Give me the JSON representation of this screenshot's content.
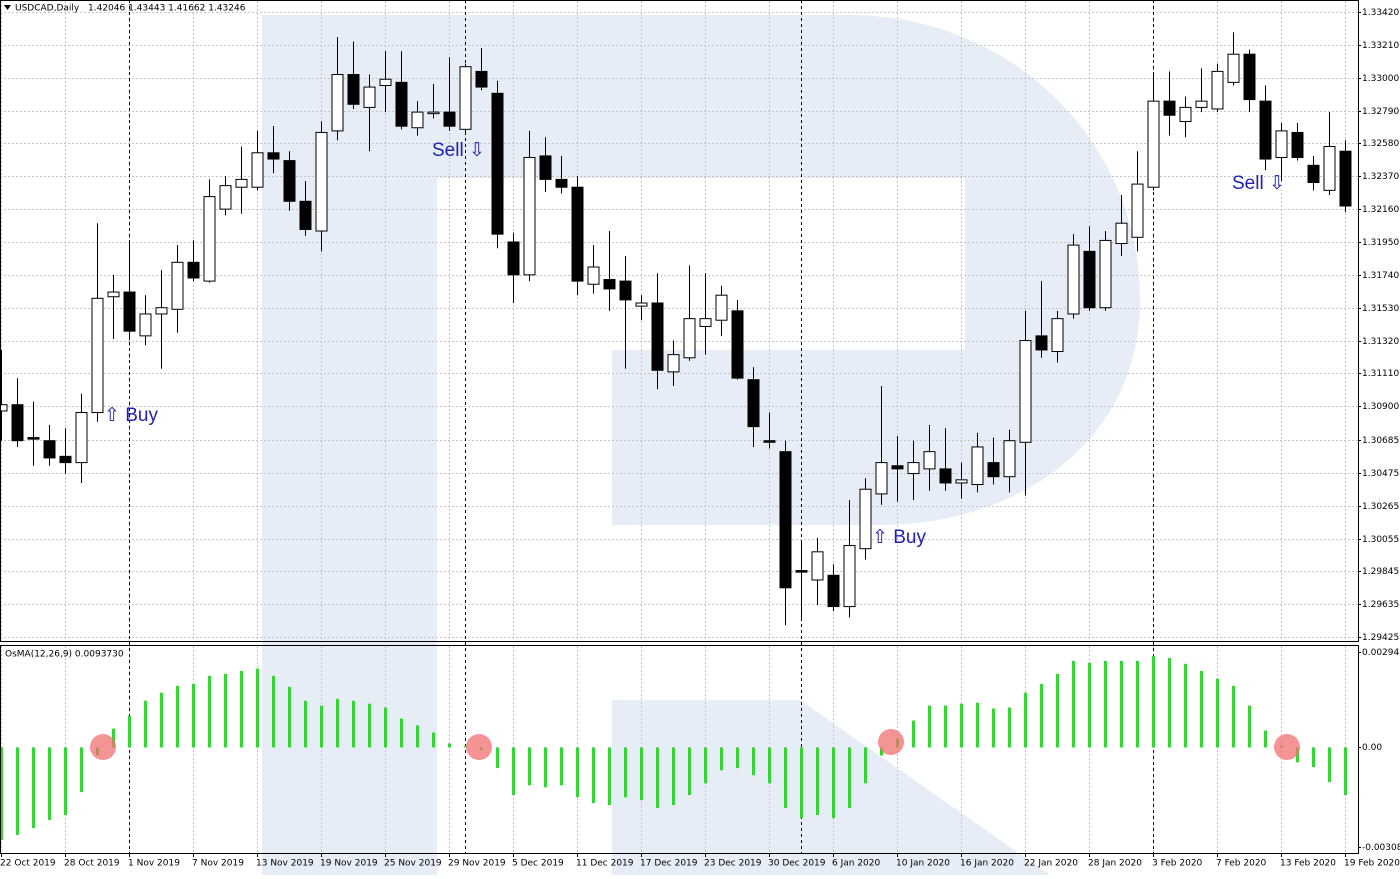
{
  "chart_data": [
    {
      "type": "candlestick",
      "title": "USDCAD,Daily",
      "subtitle": "1.42046 1.43443 1.41662 1.43246",
      "categories": [
        "22 Oct 2019",
        null,
        null,
        null,
        "28 Oct 2019",
        null,
        null,
        null,
        "1 Nov 2019",
        null,
        null,
        null,
        "7 Nov 2019",
        null,
        null,
        null,
        "13 Nov 2019",
        null,
        null,
        null,
        "19 Nov 2019",
        null,
        null,
        null,
        "25 Nov 2019",
        null,
        null,
        null,
        "29 Nov 2019",
        null,
        null,
        null,
        "5 Dec 2019",
        null,
        null,
        null,
        "11 Dec 2019",
        null,
        null,
        null,
        "17 Dec 2019",
        null,
        null,
        null,
        "23 Dec 2019",
        null,
        null,
        null,
        "30 Dec 2019",
        null,
        null,
        null,
        "6 Jan 2020",
        null,
        null,
        null,
        "10 Jan 2020",
        null,
        null,
        null,
        "16 Jan 2020",
        null,
        null,
        null,
        "22 Jan 2020",
        null,
        null,
        null,
        "28 Jan 2020",
        null,
        null,
        null,
        "3 Feb 2020",
        null,
        null,
        null,
        "7 Feb 2020",
        null,
        null,
        null,
        "13 Feb 2020",
        null,
        null,
        null,
        "19 Feb 2020"
      ],
      "open": [
        1.3087,
        1.3091,
        1.307,
        1.3068,
        1.3058,
        1.3054,
        1.3086,
        1.316,
        1.3163,
        1.3135,
        1.3149,
        1.3152,
        1.3182,
        1.317,
        1.3216,
        1.323,
        1.323,
        1.3252,
        1.3247,
        1.3221,
        1.3202,
        1.3266,
        1.3302,
        1.3281,
        1.3295,
        1.3297,
        1.3268,
        1.3277,
        1.3278,
        1.3267,
        1.3304,
        1.329,
        1.3195,
        1.3174,
        1.325,
        1.3235,
        1.323,
        1.3168,
        1.3171,
        1.317,
        1.3154,
        1.3156,
        1.3112,
        1.3121,
        1.3141,
        1.3145,
        1.3151,
        1.3107,
        1.3068,
        1.3061,
        1.2985,
        1.2979,
        1.2982,
        1.2962,
        1.2999,
        1.3034,
        1.3052,
        1.3047,
        1.305,
        1.305,
        1.3041,
        1.304,
        1.3054,
        1.3045,
        1.3067,
        1.3135,
        1.3125,
        1.3149,
        1.3189,
        1.3153,
        1.3194,
        1.3198,
        1.323,
        1.3285,
        1.3272,
        1.3281,
        1.328,
        1.3297,
        1.3315,
        1.3285,
        1.3249,
        1.3265,
        1.3244,
        1.3228,
        1.3253
      ],
      "high": [
        1.3126,
        1.3108,
        1.3093,
        1.3078,
        1.3076,
        1.3098,
        1.3207,
        1.3174,
        1.3196,
        1.3161,
        1.3177,
        1.3193,
        1.3196,
        1.3235,
        1.3237,
        1.3256,
        1.3266,
        1.3269,
        1.3253,
        1.3234,
        1.3272,
        1.3326,
        1.3323,
        1.3302,
        1.3317,
        1.3317,
        1.3285,
        1.3296,
        1.3313,
        1.3309,
        1.3319,
        1.3298,
        1.3201,
        1.3266,
        1.3262,
        1.325,
        1.3237,
        1.3193,
        1.3202,
        1.3186,
        1.3161,
        1.3175,
        1.3132,
        1.318,
        1.3175,
        1.3167,
        1.3158,
        1.3115,
        1.3086,
        1.3068,
        1.3004,
        1.3006,
        1.2989,
        1.303,
        1.3044,
        1.3103,
        1.3071,
        1.3068,
        1.3078,
        1.3076,
        1.3054,
        1.3073,
        1.307,
        1.3075,
        1.3151,
        1.317,
        1.3151,
        1.32,
        1.3205,
        1.3202,
        1.3225,
        1.3253,
        1.3303,
        1.3304,
        1.3288,
        1.3306,
        1.3309,
        1.3329,
        1.3318,
        1.3295,
        1.3271,
        1.3271,
        1.325,
        1.3278,
        1.326
      ],
      "low": [
        1.3068,
        1.3064,
        1.3052,
        1.3052,
        1.3047,
        1.3041,
        1.308,
        1.3133,
        1.3132,
        1.3129,
        1.3114,
        1.3137,
        1.317,
        1.3169,
        1.3212,
        1.3213,
        1.3228,
        1.3239,
        1.3215,
        1.3199,
        1.3189,
        1.326,
        1.328,
        1.3253,
        1.3278,
        1.3267,
        1.3263,
        1.3274,
        1.3266,
        1.3265,
        1.3292,
        1.3191,
        1.3156,
        1.317,
        1.3227,
        1.3226,
        1.3161,
        1.3162,
        1.3151,
        1.3114,
        1.3145,
        1.3101,
        1.3103,
        1.3119,
        1.3123,
        1.3135,
        1.3107,
        1.3064,
        1.3063,
        1.295,
        1.2953,
        1.2963,
        1.2959,
        1.2955,
        1.2992,
        1.3027,
        1.3029,
        1.303,
        1.3036,
        1.3036,
        1.3031,
        1.3035,
        1.304,
        1.3035,
        1.3033,
        1.3121,
        1.3118,
        1.3146,
        1.3151,
        1.3151,
        1.3186,
        1.3189,
        1.3228,
        1.3263,
        1.3262,
        1.3278,
        1.3278,
        1.3295,
        1.3278,
        1.3241,
        1.3234,
        1.3247,
        1.3228,
        1.3225,
        1.3214
      ],
      "close": [
        1.3091,
        1.3068,
        1.3069,
        1.3057,
        1.3054,
        1.3086,
        1.3159,
        1.3163,
        1.3138,
        1.3149,
        1.3153,
        1.3182,
        1.3172,
        1.3224,
        1.3231,
        1.3235,
        1.3252,
        1.3248,
        1.3221,
        1.3203,
        1.3265,
        1.3302,
        1.3283,
        1.3294,
        1.3299,
        1.3269,
        1.3278,
        1.3278,
        1.3269,
        1.3307,
        1.3294,
        1.32,
        1.3174,
        1.3249,
        1.3235,
        1.323,
        1.317,
        1.3179,
        1.3165,
        1.3158,
        1.3156,
        1.3113,
        1.3123,
        1.3146,
        1.3146,
        1.3161,
        1.3108,
        1.3077,
        1.3067,
        1.2974,
        1.2984,
        1.2997,
        1.2962,
        1.3001,
        1.3037,
        1.3054,
        1.305,
        1.3054,
        1.3061,
        1.3041,
        1.3043,
        1.3064,
        1.3045,
        1.3068,
        1.3132,
        1.3126,
        1.3146,
        1.3193,
        1.3153,
        1.3196,
        1.3207,
        1.3232,
        1.3285,
        1.3276,
        1.3281,
        1.3285,
        1.3304,
        1.3315,
        1.3286,
        1.3248,
        1.3266,
        1.3249,
        1.3233,
        1.3256,
        1.3218
      ],
      "up_color": "#ffffff",
      "down_color": "#000000",
      "ylim": [
        1.294,
        1.3349
      ],
      "yticks": [
        {
          "value": 1.3342,
          "label": "1.33420"
        },
        {
          "value": 1.3321,
          "label": "1.33210"
        },
        {
          "value": 1.33,
          "label": "1.33000"
        },
        {
          "value": 1.3279,
          "label": "1.32790"
        },
        {
          "value": 1.3258,
          "label": "1.32580"
        },
        {
          "value": 1.3237,
          "label": "1.32370"
        },
        {
          "value": 1.3216,
          "label": "1.32160"
        },
        {
          "value": 1.3195,
          "label": "1.31950"
        },
        {
          "value": 1.3174,
          "label": "1.31740"
        },
        {
          "value": 1.3153,
          "label": "1.31530"
        },
        {
          "value": 1.3132,
          "label": "1.31320"
        },
        {
          "value": 1.3111,
          "label": "1.31110"
        },
        {
          "value": 1.309,
          "label": "1.30900"
        },
        1.30685,
        1.30475,
        1.30265,
        1.30055,
        1.29845,
        1.29635,
        1.29425
      ],
      "grid": true,
      "annotations": [
        "⇧ Buy",
        "Sell ⇩",
        "⇧ Buy",
        "Sell ⇩"
      ]
    },
    {
      "type": "bar",
      "title": "OsMA(12,26,9) 0.0093730",
      "values": [
        -0.00286,
        -0.0027,
        -0.00249,
        -0.00224,
        -0.00209,
        -0.00138,
        -0.00025,
        0.00058,
        0.00098,
        0.00144,
        0.00169,
        0.0019,
        0.00196,
        0.00221,
        0.00227,
        0.00236,
        0.00243,
        0.00221,
        0.00187,
        0.00144,
        0.00129,
        0.0015,
        0.00144,
        0.00135,
        0.00123,
        0.00089,
        0.00068,
        0.00046,
        0.00012,
        6e-05,
        -9e-05,
        -0.00064,
        -0.00147,
        -0.00117,
        -0.00123,
        -0.00117,
        -0.00154,
        -0.00172,
        -0.00178,
        -0.00154,
        -0.00163,
        -0.00187,
        -0.00178,
        -0.00147,
        -0.00111,
        -0.00071,
        -0.00064,
        -0.00086,
        -0.00111,
        -0.00187,
        -0.00218,
        -0.00209,
        -0.00218,
        -0.00187,
        -0.00111,
        -0.00025,
        0.00028,
        0.00083,
        0.00129,
        0.00129,
        0.00135,
        0.00138,
        0.0012,
        0.00123,
        0.00169,
        0.00196,
        0.00227,
        0.00267,
        0.00261,
        0.00267,
        0.00267,
        0.00267,
        0.00282,
        0.00276,
        0.00258,
        0.00236,
        0.00212,
        0.0019,
        0.00129,
        0.00052,
        6e-05,
        -0.00046,
        -0.00061,
        -0.00107,
        -0.00147
      ],
      "color": "#33d633",
      "ylim": [
        -0.00326,
        0.00313
      ],
      "yticks": [
        0.002948,
        {
          "value": 0,
          "label": "0.00"
        },
        -0.00308
      ],
      "grid": false
    }
  ]
}
